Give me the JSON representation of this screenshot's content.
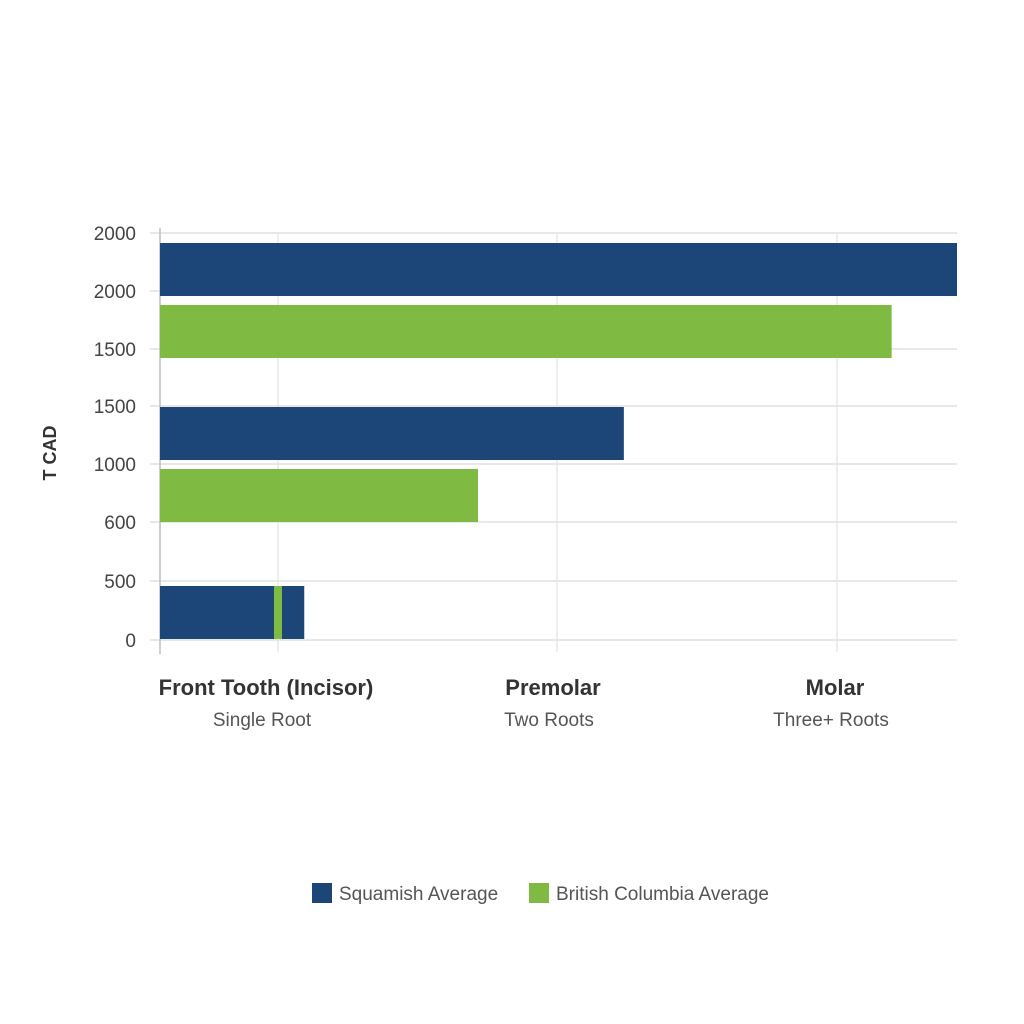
{
  "chart_data": {
    "type": "bar",
    "orientation": "horizontal",
    "ylabel": "T CAD",
    "y_tick_labels": [
      "2000",
      "2000",
      "1500",
      "1500",
      "1000",
      "600",
      "500",
      "0"
    ],
    "categories": [
      {
        "label": "Front Tooth (Incisor)",
        "sublabel": "Single Root"
      },
      {
        "label": "Premolar",
        "sublabel": "Two Roots"
      },
      {
        "label": "Molar",
        "sublabel": "Three+ Roots"
      }
    ],
    "series": [
      {
        "name": "Squamish Average",
        "color": "#1b4677",
        "relative_lengths": [
          0.181,
          0.582,
          1.0
        ]
      },
      {
        "name": "British Columbia Average",
        "color": "#7fbb42",
        "relative_lengths": [
          0.01,
          0.399,
          0.918
        ]
      }
    ],
    "grid": true,
    "legend": "bottom"
  }
}
